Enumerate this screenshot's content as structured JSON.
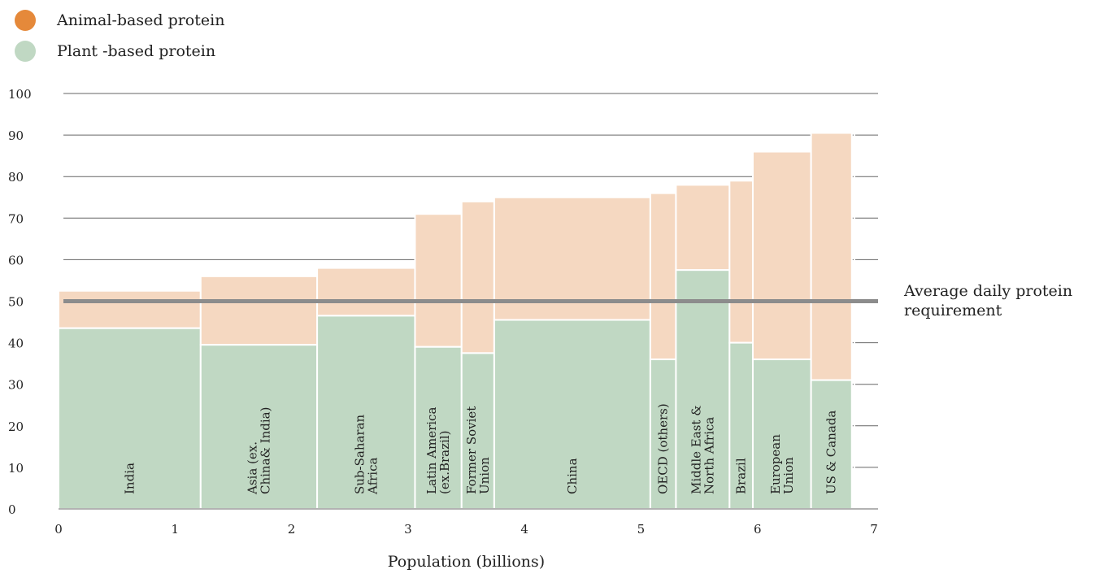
{
  "legend": {
    "animal_label": "Animal-based protein",
    "plant_label": "Plant -based protein",
    "animal_icon": "orange-dot-icon",
    "plant_icon": "green-dot-icon"
  },
  "colors": {
    "animal_legend": "#e5893a",
    "animal_fill": "#f5d8c1",
    "plant_fill": "#c0d8c3",
    "reference_line": "#8c8c8c",
    "grid": "#666666"
  },
  "reference": {
    "value": 50,
    "label_line1": "Average daily protein",
    "label_line2": "requirement"
  },
  "chart_data": {
    "type": "bar",
    "subtype": "variable-width stacked bar (marimekko)",
    "xlabel": "Population (billions)",
    "ylabel": "",
    "xlim": [
      0,
      7
    ],
    "ylim": [
      0,
      100
    ],
    "x_ticks": [
      0,
      1,
      2,
      3,
      4,
      5,
      6,
      7
    ],
    "y_ticks": [
      0,
      10,
      20,
      30,
      40,
      50,
      60,
      70,
      80,
      90,
      100
    ],
    "grid": true,
    "legend_position": "top-left",
    "series_names": [
      "Plant -based protein",
      "Animal-based protein"
    ],
    "regions": [
      {
        "name": "India",
        "label_lines": [
          "India"
        ],
        "population": 1.22,
        "plant": 43.5,
        "total": 52.5
      },
      {
        "name": "Asia (ex. China& India)",
        "label_lines": [
          "Asia (ex.",
          "China& India)"
        ],
        "population": 1.0,
        "plant": 39.5,
        "total": 56
      },
      {
        "name": "Sub-Saharan Africa",
        "label_lines": [
          "Sub-Saharan",
          "Africa"
        ],
        "population": 0.84,
        "plant": 46.5,
        "total": 58
      },
      {
        "name": "Latin America (ex.Brazil)",
        "label_lines": [
          "Latin America",
          "(ex.Brazil)"
        ],
        "population": 0.4,
        "plant": 39,
        "total": 71
      },
      {
        "name": "Former Soviet Union",
        "label_lines": [
          "Former Soviet",
          "Union"
        ],
        "population": 0.28,
        "plant": 37.5,
        "total": 74
      },
      {
        "name": "China",
        "label_lines": [
          "China"
        ],
        "population": 1.34,
        "plant": 45.5,
        "total": 75
      },
      {
        "name": "OECD (others)",
        "label_lines": [
          "OECD (others)"
        ],
        "population": 0.22,
        "plant": 36,
        "total": 76
      },
      {
        "name": "Middle East & North Africa",
        "label_lines": [
          "Middle East &",
          "North Africa"
        ],
        "population": 0.46,
        "plant": 57.5,
        "total": 78
      },
      {
        "name": "Brazil",
        "label_lines": [
          "Brazil"
        ],
        "population": 0.2,
        "plant": 40,
        "total": 79
      },
      {
        "name": "European Union",
        "label_lines": [
          "European",
          "Union"
        ],
        "population": 0.5,
        "plant": 36,
        "total": 86
      },
      {
        "name": "US & Canada",
        "label_lines": [
          "US & Canada"
        ],
        "population": 0.35,
        "plant": 31,
        "total": 90.5
      }
    ]
  }
}
